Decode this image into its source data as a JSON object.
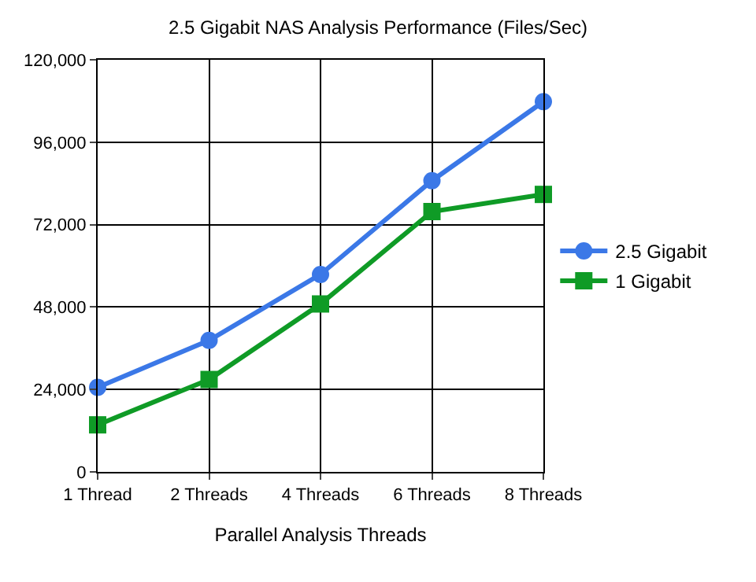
{
  "chart_data": {
    "type": "line",
    "title": "2.5 Gigabit NAS Analysis Performance (Files/Sec)",
    "xlabel": "Parallel Analysis Threads",
    "categories": [
      "1 Thread",
      "2 Threads",
      "4 Threads",
      "6 Threads",
      "8 Threads"
    ],
    "series": [
      {
        "name": "2.5 Gigabit",
        "color": "#3b78e7",
        "marker": "circle",
        "values": [
          24600,
          38300,
          57500,
          84800,
          107800
        ]
      },
      {
        "name": "1 Gigabit",
        "color": "#0f9b26",
        "marker": "square",
        "values": [
          13700,
          26900,
          48900,
          75800,
          80800
        ]
      }
    ],
    "ylim": [
      0,
      120000
    ],
    "yticks": [
      {
        "value": 0,
        "label": "0"
      },
      {
        "value": 24000,
        "label": "24,000"
      },
      {
        "value": 48000,
        "label": "48,000"
      },
      {
        "value": 72000,
        "label": "72,000"
      },
      {
        "value": 96000,
        "label": "96,000"
      },
      {
        "value": 120000,
        "label": "120,000"
      }
    ],
    "grid": true,
    "legend": "right",
    "line_style": "solid"
  }
}
